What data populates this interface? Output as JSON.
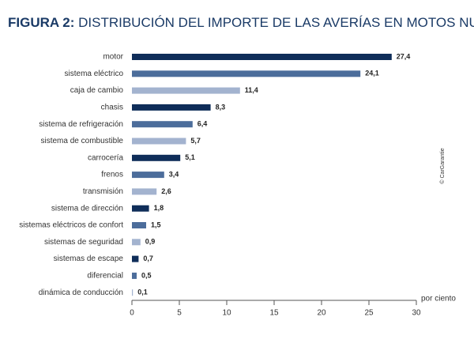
{
  "chart_data": {
    "type": "hbar",
    "title_label": "FIGURA 2:",
    "title": "DISTRIBUCIÓN DEL IMPORTE DE LAS AVERÍAS EN MOTOS NUEVAS",
    "x_unit": "por ciento",
    "credit": "© CarGarantie",
    "categories": [
      "motor",
      "sistema eléctrico",
      "caja de cambio",
      "chasis",
      "sistema de refrigeración",
      "sistema de combustible",
      "carrocería",
      "frenos",
      "transmisión",
      "sistema de dirección",
      "sistemas eléctricos de confort",
      "sistemas de seguridad",
      "sistemas de escape",
      "diferencial",
      "dinámica de conducción"
    ],
    "values": [
      27.4,
      24.1,
      11.4,
      8.3,
      6.4,
      5.7,
      5.1,
      3.4,
      2.6,
      1.8,
      1.5,
      0.9,
      0.7,
      0.5,
      0.1
    ],
    "value_labels": [
      "27,4",
      "24,1",
      "11,4",
      "8,3",
      "6,4",
      "5,7",
      "5,1",
      "3,4",
      "2,6",
      "1,8",
      "1,5",
      "0,9",
      "0,7",
      "0,5",
      "0,1"
    ],
    "colors": [
      "#0f2d59",
      "#4c6d9b",
      "#a3b3cf",
      "#0f2d59",
      "#4c6d9b",
      "#a3b3cf",
      "#0f2d59",
      "#4c6d9b",
      "#a3b3cf",
      "#0f2d59",
      "#4c6d9b",
      "#a3b3cf",
      "#0f2d59",
      "#4c6d9b",
      "#a3b3cf"
    ],
    "xlim": [
      0,
      30
    ],
    "xticks": [
      0,
      5,
      10,
      15,
      20,
      25,
      30
    ]
  }
}
